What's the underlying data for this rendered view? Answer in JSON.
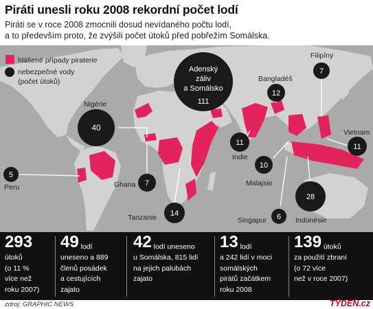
{
  "title": "Piráti unesli roku 2008 rekordní počet lodí",
  "subtitle": [
    "Piráti se v roce 2008 zmocnili dosud nevídaného počtu lodí,",
    "a to především proto, že zvýšili počet útoků před pobřežím Somálska."
  ],
  "legend": {
    "reported": "hlášené případy piraterie",
    "dangerous": [
      "nebezpečné vody",
      "(počet útoků)"
    ]
  },
  "colors": {
    "piracy": "#e4235e",
    "bubble": "#1a1a1a",
    "land": "#d2d2d2",
    "sea": "#aaaaaa"
  },
  "regions": {
    "peru": {
      "name": "Peru",
      "attacks": "5"
    },
    "nigeria": {
      "name": "Nigérie",
      "attacks": "40"
    },
    "ghana": {
      "name": "Ghana",
      "attacks": "7"
    },
    "tanzania": {
      "name": "Tanzanie",
      "attacks": "14"
    },
    "aden": {
      "name": [
        "Adenský",
        "záliv",
        "a Somálsko"
      ],
      "attacks": "111"
    },
    "india": {
      "name": "Indie",
      "attacks": "11"
    },
    "bangladesh": {
      "name": "Bangladéš",
      "attacks": "12"
    },
    "malaysia": {
      "name": "Malajsie",
      "attacks": "10"
    },
    "singapore": {
      "name": "Singapur",
      "attacks": "6"
    },
    "indonesia": {
      "name": "Indonésie",
      "attacks": "28"
    },
    "philippines": {
      "name": "Filipíny",
      "attacks": "7"
    },
    "vietnam": {
      "name": "Vietnam",
      "attacks": "11"
    }
  },
  "stats": [
    {
      "big": "293",
      "inline": "",
      "lines": [
        "útoků",
        "(o 11 %",
        "více než",
        "roku 2007)"
      ]
    },
    {
      "big": "49",
      "inline": "lodí",
      "lines": [
        "uneseno a 889",
        "členů posádek",
        "a cestujících",
        "zajato"
      ]
    },
    {
      "big": "42",
      "inline": "lodí uneseno",
      "lines": [
        "u Somálska, 815 lidí",
        "na jejich palubách",
        "zajato"
      ]
    },
    {
      "big": "13",
      "inline": "lodí",
      "lines": [
        "a 242 lidí v moci",
        "somálských",
        "pirátů začátkem",
        "roku 2008"
      ]
    },
    {
      "big": "139",
      "inline": "útoků",
      "lines": [
        "za použití zbraní",
        "(o 72 více",
        "než v roce 2007)"
      ]
    }
  ],
  "source": "zdroj: GRAPHIC NEWS",
  "brand": "TÝDEN.cz"
}
